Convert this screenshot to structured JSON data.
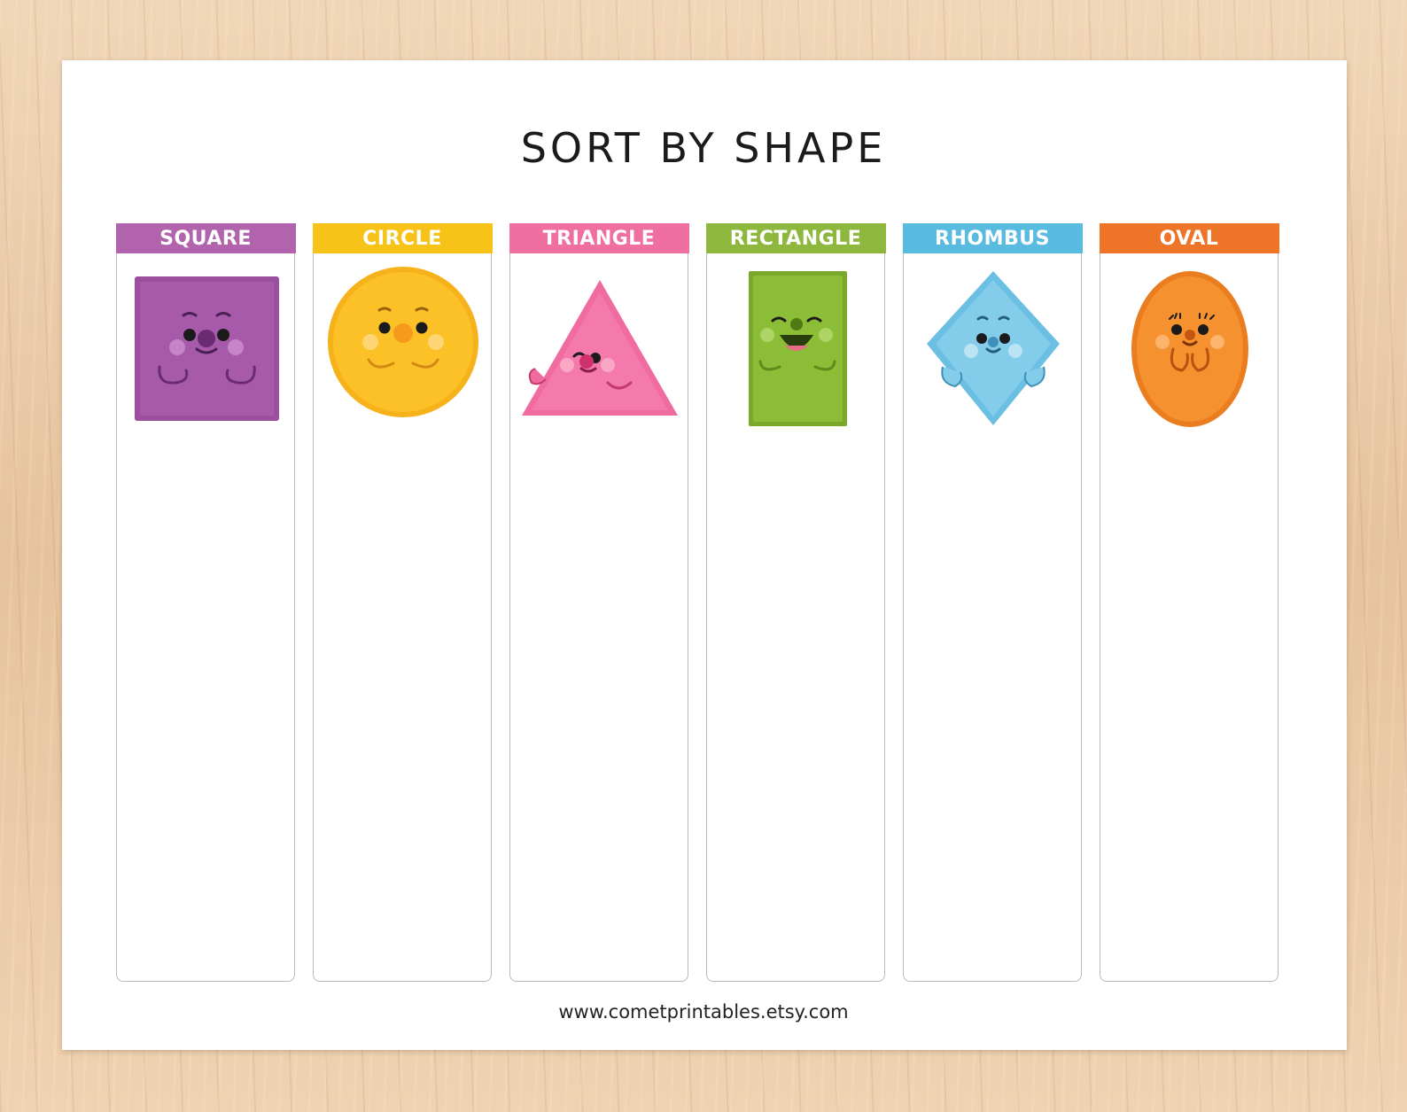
{
  "title": "SORT BY SHAPE",
  "columns": [
    {
      "label": "SQUARE",
      "color": "#b163ad",
      "shape_color": "#9b4f9e",
      "icon": "square-character-icon"
    },
    {
      "label": "CIRCLE",
      "color": "#f8c319",
      "shape_color": "#fbbd20",
      "icon": "circle-character-icon"
    },
    {
      "label": "TRIANGLE",
      "color": "#ee6fa0",
      "shape_color": "#f06ba0",
      "icon": "triangle-character-icon"
    },
    {
      "label": "RECTANGLE",
      "color": "#8db73d",
      "shape_color": "#86b832",
      "icon": "rectangle-character-icon"
    },
    {
      "label": "RHOMBUS",
      "color": "#58bbdf",
      "shape_color": "#7fcbe9",
      "icon": "rhombus-character-icon"
    },
    {
      "label": "OVAL",
      "color": "#ee7527",
      "shape_color": "#f58f2c",
      "icon": "oval-character-icon"
    }
  ],
  "footer": "www.cometprintables.etsy.com"
}
